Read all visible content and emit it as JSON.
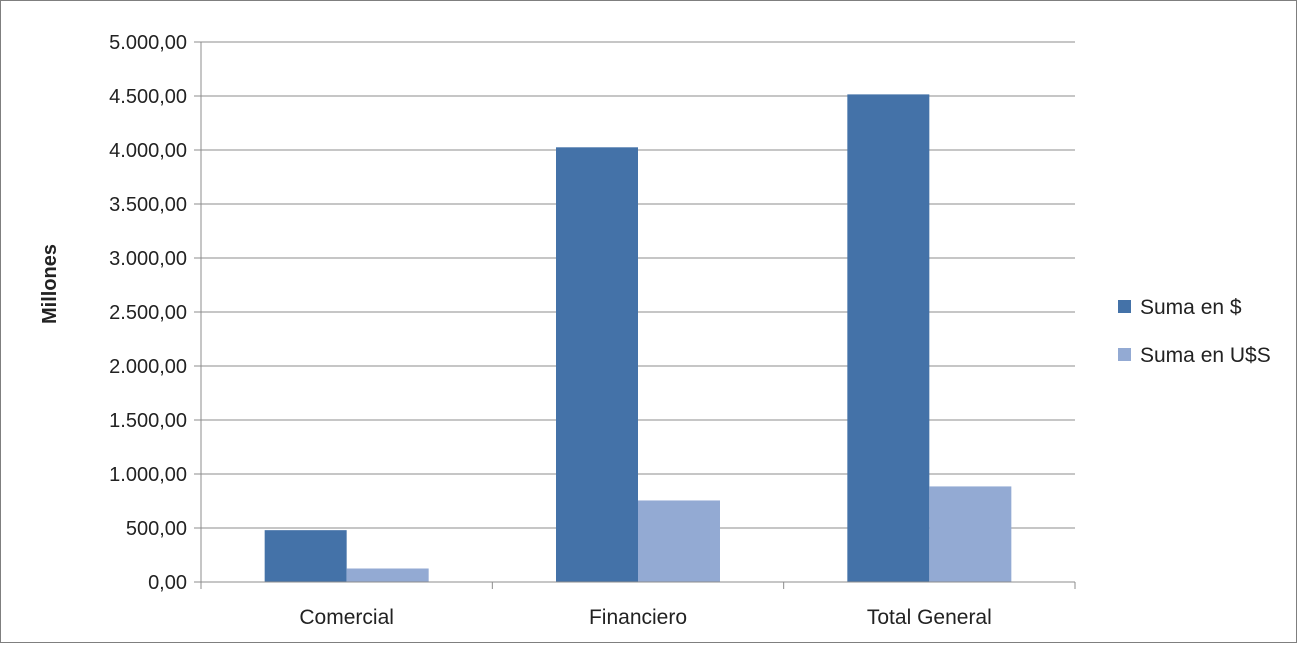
{
  "chart_data": {
    "type": "bar",
    "title": "",
    "xlabel": "",
    "ylabel": "Millones",
    "ylim": [
      0,
      5000
    ],
    "ytick_step": 500,
    "ytick_labels": [
      "0,00",
      "500,00",
      "1.000,00",
      "1.500,00",
      "2.000,00",
      "2.500,00",
      "3.000,00",
      "3.500,00",
      "4.000,00",
      "4.500,00",
      "5.000,00"
    ],
    "grid": true,
    "legend_position": "right",
    "categories": [
      "Comercial",
      "Financiero",
      "Total General"
    ],
    "series": [
      {
        "name": "Suma en $",
        "color": "#4472a8",
        "values": [
          480,
          4025,
          4515
        ]
      },
      {
        "name": "Suma en U$S",
        "color": "#93aad3",
        "values": [
          125,
          755,
          885
        ]
      }
    ]
  }
}
